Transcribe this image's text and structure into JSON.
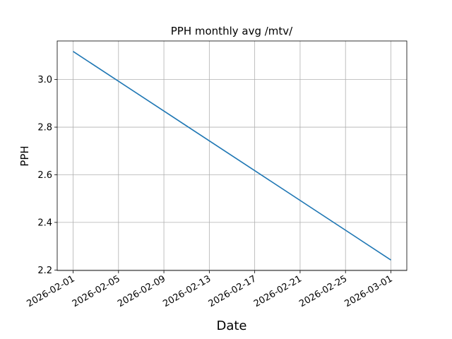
{
  "chart_data": {
    "type": "line",
    "title": "PPH monthly avg /mtv/",
    "xlabel": "Date",
    "ylabel": "PPH",
    "x": [
      "2026-02-01",
      "2026-03-01"
    ],
    "series": [
      {
        "name": "PPH",
        "color": "#1f77b4",
        "values": [
          3.118,
          2.242
        ]
      }
    ],
    "xlim": [
      "2026-01-30T14:24",
      "2026-03-02T09:36"
    ],
    "xticks": [
      "2026-02-01",
      "2026-02-05",
      "2026-02-09",
      "2026-02-13",
      "2026-02-17",
      "2026-02-21",
      "2026-02-25",
      "2026-03-01"
    ],
    "ylim": [
      2.198,
      3.162
    ],
    "yticks": [
      2.2,
      2.4,
      2.6,
      2.8,
      {
        "value": 3,
        "label": "3.0"
      }
    ],
    "grid": true
  }
}
